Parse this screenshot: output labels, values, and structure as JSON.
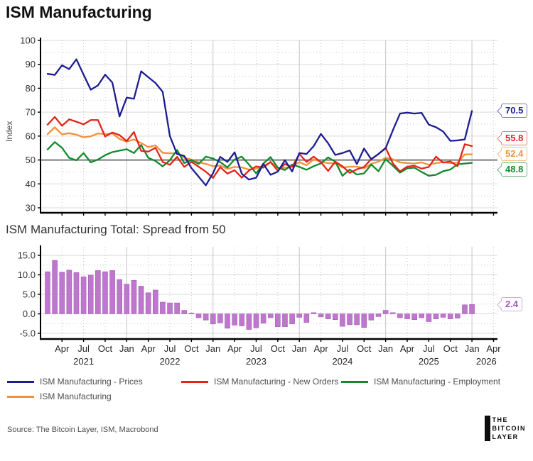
{
  "title": "ISM Manufacturing",
  "source": "Source: The Bitcoin Layer, ISM, Macrobond",
  "logo": {
    "line1": "THE",
    "line2": "BITCOIN",
    "line3": "LAYER"
  },
  "colors": {
    "axis": "#000000",
    "grid_major": "#d9d9d9",
    "grid_minor": "#c9c9c9",
    "grid_year": "#c6c6c6",
    "reference_line": "#7a7a7a",
    "tick_text": "#333333",
    "bar_fill": "#bd77cd",
    "bar_stroke": "#a65cb8",
    "bar_label": "#a258b8"
  },
  "chart_data": [
    {
      "type": "line",
      "ylabel": "Index",
      "ylim": [
        30,
        100
      ],
      "yticks": [
        30,
        40,
        50,
        60,
        70,
        80,
        90,
        100
      ],
      "reference_line": 50,
      "x_start": "2021-02",
      "x_end": "2026-01",
      "x_tick_labels": [
        "Apr",
        "Jul",
        "Oct",
        "Jan",
        "Apr",
        "Jul",
        "Oct",
        "Jan",
        "Apr",
        "Jul",
        "Oct",
        "Jan",
        "Apr",
        "Jul",
        "Oct",
        "Jan",
        "Apr",
        "Jul",
        "Oct",
        "Jan",
        "Apr"
      ],
      "x_year_labels": [
        "2021",
        "2022",
        "2023",
        "2024",
        "2025",
        "2026"
      ],
      "legend_position": "bottom",
      "series": [
        {
          "name": "ISM Manufacturing - Prices",
          "color": "#1c1d92",
          "end_label": "70.5",
          "values": [
            86.0,
            85.6,
            89.6,
            88.0,
            92.1,
            85.7,
            79.4,
            81.2,
            85.7,
            82.4,
            68.2,
            76.1,
            75.6,
            87.1,
            84.6,
            82.2,
            78.5,
            60.0,
            52.5,
            51.7,
            46.6,
            43.0,
            39.4,
            44.5,
            51.3,
            49.2,
            53.2,
            44.2,
            41.8,
            42.6,
            48.4,
            43.8,
            45.1,
            49.9,
            45.2,
            52.9,
            52.5,
            55.8,
            60.9,
            57.0,
            52.1,
            52.9,
            54.0,
            48.3,
            54.8,
            50.3,
            52.5,
            54.9,
            62.4,
            69.4,
            69.8,
            69.4,
            69.7,
            64.8,
            63.7,
            61.9,
            58.0,
            58.2,
            58.6,
            70.5
          ]
        },
        {
          "name": "ISM Manufacturing - New Orders",
          "color": "#e2241a",
          "end_label": "55.8",
          "values": [
            64.8,
            68.0,
            64.3,
            67.0,
            66.0,
            64.9,
            66.7,
            66.7,
            59.8,
            61.5,
            60.4,
            57.9,
            61.7,
            53.8,
            53.5,
            55.1,
            49.2,
            48.0,
            51.3,
            47.1,
            49.2,
            47.2,
            45.1,
            42.5,
            47.0,
            44.3,
            45.7,
            42.6,
            45.6,
            47.3,
            46.8,
            49.2,
            45.5,
            48.3,
            47.1,
            52.5,
            49.2,
            51.4,
            49.1,
            45.4,
            49.3,
            47.4,
            44.6,
            46.1,
            47.1,
            50.4,
            52.5,
            55.1,
            48.6,
            45.2,
            47.2,
            47.6,
            46.4,
            47.1,
            51.4,
            48.9,
            49.4,
            47.4,
            56.6,
            55.8
          ]
        },
        {
          "name": "ISM Manufacturing - Employment",
          "color": "#108a2e",
          "end_label": "48.8",
          "values": [
            54.4,
            57.5,
            55.1,
            50.9,
            49.9,
            52.9,
            49.0,
            50.2,
            52.0,
            53.3,
            53.9,
            54.5,
            52.9,
            56.3,
            50.9,
            49.6,
            47.3,
            49.9,
            54.2,
            48.7,
            50.0,
            48.4,
            51.4,
            50.6,
            49.1,
            46.9,
            50.2,
            51.4,
            48.1,
            44.4,
            48.5,
            51.2,
            46.8,
            45.8,
            48.1,
            47.1,
            45.9,
            47.4,
            48.6,
            51.1,
            49.3,
            43.4,
            46.0,
            43.9,
            44.4,
            48.1,
            45.3,
            50.3,
            47.6,
            44.7,
            46.5,
            46.8,
            45.0,
            43.4,
            43.8,
            45.3,
            46.0,
            48.2,
            48.5,
            48.8
          ]
        },
        {
          "name": "ISM Manufacturing",
          "color": "#f0913c",
          "end_label": "52.4",
          "values": [
            60.8,
            63.7,
            60.7,
            61.2,
            60.6,
            59.5,
            59.9,
            61.1,
            60.8,
            61.1,
            58.8,
            57.6,
            58.6,
            57.1,
            55.4,
            56.1,
            53.0,
            52.8,
            52.8,
            50.9,
            50.2,
            49.0,
            48.4,
            47.4,
            47.7,
            46.3,
            47.1,
            46.9,
            46.0,
            46.4,
            47.6,
            49.0,
            46.7,
            46.7,
            47.4,
            49.1,
            47.8,
            50.3,
            49.2,
            48.7,
            48.5,
            46.8,
            47.2,
            47.2,
            46.5,
            48.4,
            49.3,
            50.9,
            50.3,
            49.0,
            48.7,
            48.5,
            49.0,
            48.0,
            48.7,
            49.1,
            48.7,
            48.9,
            52.3,
            52.4
          ]
        }
      ]
    },
    {
      "type": "bar",
      "title": "ISM Manufacturing Total: Spread from 50",
      "ylim": [
        -5,
        15
      ],
      "yticks": [
        -5,
        0,
        5,
        10,
        15
      ],
      "ytick_labels": [
        "-5.0",
        "0.0",
        "5.0",
        "10.0",
        "15.0"
      ],
      "x_start": "2021-02",
      "x_end": "2026-01",
      "end_label": "2.4",
      "values": [
        10.8,
        13.7,
        10.7,
        11.2,
        10.6,
        9.5,
        9.9,
        11.1,
        10.8,
        11.1,
        8.8,
        7.6,
        8.6,
        7.1,
        5.4,
        6.1,
        3.0,
        2.8,
        2.8,
        0.9,
        0.2,
        -1.0,
        -1.6,
        -2.6,
        -2.3,
        -3.7,
        -2.9,
        -3.1,
        -4.0,
        -3.6,
        -2.4,
        -1.0,
        -3.3,
        -3.3,
        -2.6,
        -0.9,
        -2.2,
        0.3,
        -0.8,
        -1.3,
        -1.5,
        -3.2,
        -2.8,
        -2.8,
        -3.5,
        -1.6,
        -0.7,
        0.9,
        0.3,
        -1.0,
        -1.3,
        -1.5,
        -1.0,
        -2.0,
        -1.3,
        -0.9,
        -1.3,
        -1.1,
        2.3,
        2.4
      ]
    }
  ]
}
